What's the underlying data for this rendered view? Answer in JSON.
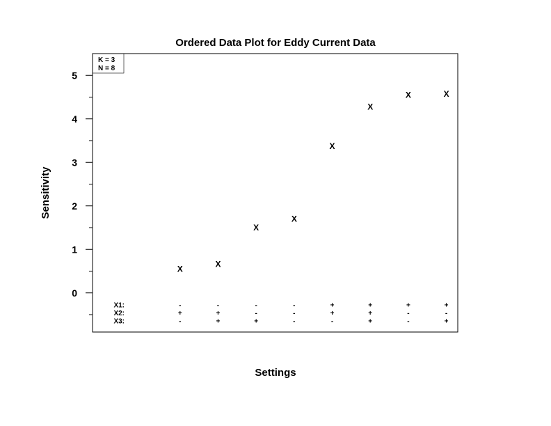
{
  "chart_data": {
    "type": "scatter",
    "title": "Ordered Data Plot for Eddy Current Data",
    "xlabel": "Settings",
    "ylabel": "Sensitivity",
    "ylim": [
      -0.9,
      5.5
    ],
    "xlim": [
      -1.3,
      8.3
    ],
    "y_ticks": [
      0,
      1,
      2,
      3,
      4,
      5
    ],
    "y_minor_ticks": [
      -0.5,
      0.5,
      1.5,
      2.5,
      3.5,
      4.5
    ],
    "marker": "X",
    "grid": false,
    "x": [
      1,
      2,
      3,
      4,
      5,
      6,
      7,
      8
    ],
    "values": [
      0.55,
      0.66,
      1.5,
      1.7,
      3.37,
      4.28,
      4.55,
      4.57
    ],
    "info_box": [
      "K = 3",
      "N = 8"
    ],
    "factors": [
      {
        "name": "X1:",
        "signs": [
          "-",
          "-",
          "-",
          "-",
          "+",
          "+",
          "+",
          "+"
        ]
      },
      {
        "name": "X2:",
        "signs": [
          "+",
          "+",
          "-",
          "-",
          "+",
          "+",
          "-",
          "-"
        ]
      },
      {
        "name": "X3:",
        "signs": [
          "-",
          "+",
          "+",
          "-",
          "-",
          "+",
          "-",
          "+"
        ]
      }
    ]
  }
}
